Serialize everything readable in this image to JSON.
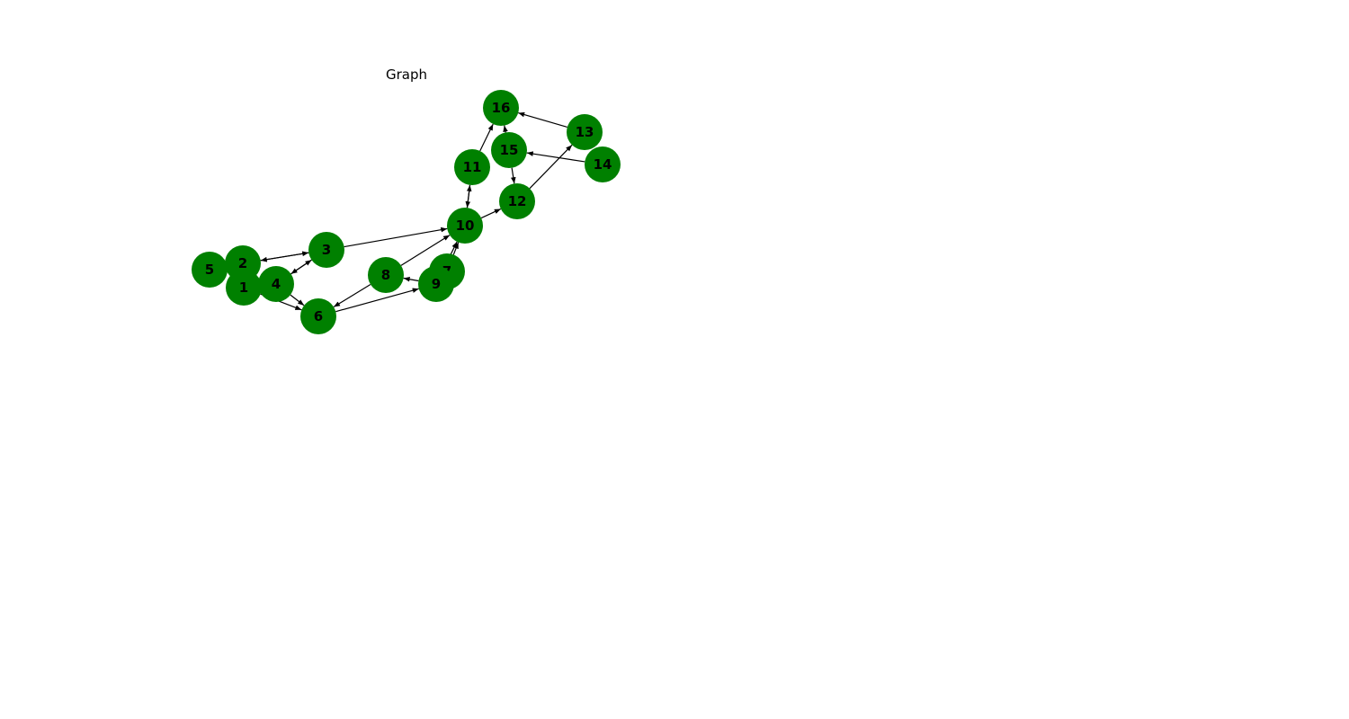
{
  "title": "Graph",
  "colors": {
    "node": "#008000",
    "edge": "#000000",
    "label": "#000000",
    "background": "#ffffff"
  },
  "nodes": [
    {
      "id": "1",
      "label": "1"
    },
    {
      "id": "2",
      "label": "2"
    },
    {
      "id": "3",
      "label": "3"
    },
    {
      "id": "4",
      "label": "4"
    },
    {
      "id": "5",
      "label": "5"
    },
    {
      "id": "6",
      "label": "6"
    },
    {
      "id": "7",
      "label": "7"
    },
    {
      "id": "8",
      "label": "8"
    },
    {
      "id": "9",
      "label": "9"
    },
    {
      "id": "10",
      "label": "10"
    },
    {
      "id": "11",
      "label": "11"
    },
    {
      "id": "12",
      "label": "12"
    },
    {
      "id": "13",
      "label": "13"
    },
    {
      "id": "14",
      "label": "14"
    },
    {
      "id": "15",
      "label": "15"
    },
    {
      "id": "16",
      "label": "16"
    }
  ],
  "edges": [
    {
      "from": "1",
      "to": "6"
    },
    {
      "from": "2",
      "to": "3"
    },
    {
      "from": "3",
      "to": "2"
    },
    {
      "from": "4",
      "to": "3"
    },
    {
      "from": "3",
      "to": "4"
    },
    {
      "from": "4",
      "to": "6"
    },
    {
      "from": "3",
      "to": "10"
    },
    {
      "from": "8",
      "to": "10"
    },
    {
      "from": "8",
      "to": "6"
    },
    {
      "from": "6",
      "to": "9"
    },
    {
      "from": "9",
      "to": "8"
    },
    {
      "from": "7",
      "to": "10"
    },
    {
      "from": "9",
      "to": "10"
    },
    {
      "from": "10",
      "to": "11"
    },
    {
      "from": "11",
      "to": "10"
    },
    {
      "from": "10",
      "to": "12"
    },
    {
      "from": "11",
      "to": "16"
    },
    {
      "from": "15",
      "to": "16"
    },
    {
      "from": "15",
      "to": "12"
    },
    {
      "from": "12",
      "to": "13"
    },
    {
      "from": "13",
      "to": "16"
    },
    {
      "from": "14",
      "to": "15"
    }
  ]
}
